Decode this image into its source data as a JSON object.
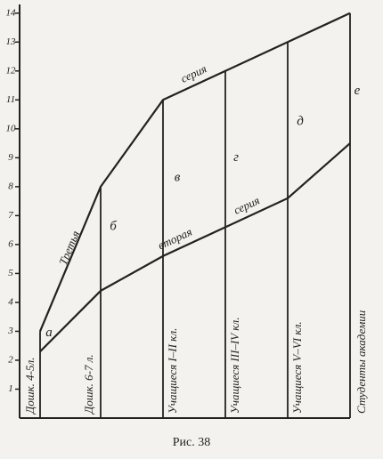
{
  "chart_data": {
    "type": "line",
    "caption": "Рис. 38",
    "categories": [
      "Дошк. 4-5л.",
      "Дошк. 6-7 л.",
      "Учащиеся I–II кл.",
      "Учащиеся III–IV кл.",
      "Учащиеся V–VI кл.",
      "Студенты академии"
    ],
    "point_labels": [
      "а",
      "б",
      "в",
      "г",
      "д",
      "е"
    ],
    "series": [
      {
        "labels": [
          "Третья",
          "серия"
        ],
        "color": "#222222",
        "values": [
          3,
          8,
          11,
          12,
          13,
          14
        ]
      },
      {
        "labels": [
          "вторая",
          "серия"
        ],
        "color": "#222222",
        "values": [
          2.3,
          4.4,
          5.6,
          6.6,
          7.6,
          9.5
        ]
      }
    ],
    "ylim": [
      0,
      14.3
    ],
    "yticks": [
      1,
      2,
      3,
      4,
      5,
      6,
      7,
      8,
      9,
      10,
      11,
      12,
      13,
      14
    ]
  }
}
